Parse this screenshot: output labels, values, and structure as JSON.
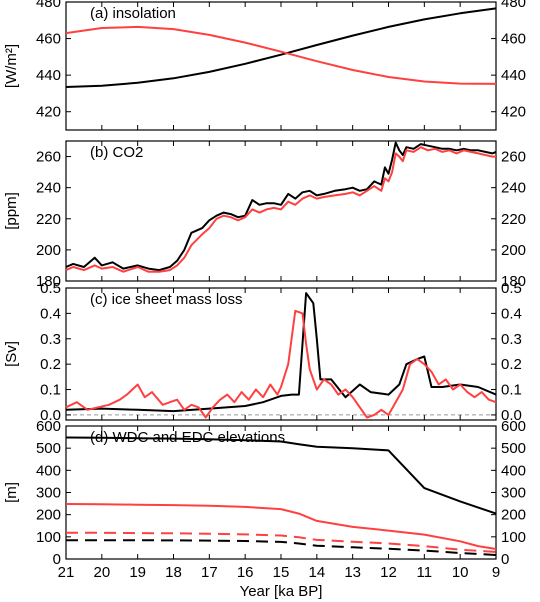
{
  "chart_data": [
    {
      "type": "line",
      "title": "(a) insolation",
      "ylabel": "[W/m²]",
      "xlim": [
        21,
        9
      ],
      "ylim": [
        410,
        480
      ],
      "yticks": [
        420,
        440,
        460,
        480
      ],
      "series": [
        {
          "color": "#000000",
          "x": [
            21,
            20,
            19,
            18,
            17,
            16,
            15,
            14,
            13,
            12,
            11,
            10,
            9
          ],
          "y": [
            433.5,
            434.2,
            435.8,
            438.3,
            441.8,
            446.2,
            451.2,
            456.5,
            461.6,
            466.4,
            470.5,
            473.8,
            476.5
          ]
        },
        {
          "color": "#ff4040",
          "x": [
            21,
            20,
            19,
            18,
            17,
            16,
            15,
            14,
            13,
            12,
            11,
            10,
            9
          ],
          "y": [
            463,
            465.8,
            466.4,
            465.2,
            462,
            457.8,
            452.8,
            447.6,
            442.8,
            439,
            436.5,
            435.4,
            435.2
          ]
        }
      ]
    },
    {
      "type": "line",
      "title": "(b) CO2",
      "ylabel": "[ppm]",
      "xlim": [
        21,
        9
      ],
      "ylim": [
        180,
        270
      ],
      "yticks": [
        180,
        200,
        220,
        240,
        260
      ],
      "series": [
        {
          "color": "#000000",
          "x": [
            21,
            20.8,
            20.5,
            20.2,
            20,
            19.7,
            19.4,
            19,
            18.7,
            18.4,
            18.1,
            17.9,
            17.7,
            17.5,
            17.2,
            17,
            16.8,
            16.6,
            16.4,
            16.2,
            16,
            15.8,
            15.6,
            15.4,
            15.2,
            15,
            14.8,
            14.6,
            14.4,
            14.2,
            14,
            13.8,
            13.5,
            13.2,
            13,
            12.8,
            12.6,
            12.4,
            12.2,
            12.1,
            12,
            11.9,
            11.8,
            11.7,
            11.6,
            11.5,
            11.3,
            11.1,
            10.9,
            10.7,
            10.5,
            10.3,
            10.1,
            9.9,
            9.7,
            9.5,
            9.3,
            9.1,
            9
          ],
          "y": [
            189,
            191,
            189,
            195,
            190,
            192,
            188,
            190,
            188,
            187,
            189,
            193,
            200,
            211,
            214,
            219,
            222,
            224,
            223,
            221,
            222,
            232,
            229,
            230,
            230,
            229,
            236,
            233,
            237,
            238,
            235,
            236,
            238,
            239,
            240,
            238,
            239,
            244,
            242,
            253,
            249,
            258,
            269,
            264,
            261,
            266,
            265,
            268,
            267,
            266,
            265,
            265,
            264,
            265,
            264,
            264,
            263,
            262,
            263
          ]
        },
        {
          "color": "#ff4040",
          "x": [
            21,
            20.8,
            20.5,
            20.2,
            20,
            19.7,
            19.4,
            19,
            18.7,
            18.4,
            18.1,
            17.9,
            17.7,
            17.5,
            17.2,
            17,
            16.8,
            16.6,
            16.4,
            16.2,
            16,
            15.8,
            15.6,
            15.4,
            15.2,
            15,
            14.8,
            14.6,
            14.4,
            14.2,
            14,
            13.8,
            13.5,
            13.2,
            13,
            12.8,
            12.6,
            12.4,
            12.2,
            12.1,
            12,
            11.9,
            11.8,
            11.7,
            11.6,
            11.5,
            11.3,
            11.1,
            10.9,
            10.7,
            10.5,
            10.3,
            10.1,
            9.9,
            9.7,
            9.5,
            9.3,
            9.1,
            9
          ],
          "y": [
            187,
            189,
            187,
            190,
            188,
            189,
            186,
            189,
            186,
            186,
            187,
            190,
            195,
            203,
            210,
            214,
            220,
            222,
            221,
            219,
            221,
            226,
            224,
            226,
            227,
            226,
            231,
            229,
            233,
            235,
            233,
            234,
            235,
            236,
            237,
            235,
            238,
            241,
            238,
            246,
            244,
            250,
            262,
            260,
            257,
            264,
            263,
            266,
            264,
            265,
            263,
            264,
            262,
            264,
            263,
            262,
            261,
            260,
            260
          ]
        }
      ]
    },
    {
      "type": "line",
      "title": "(c) ice sheet mass loss",
      "ylabel": "[Sv]",
      "xlim": [
        21,
        9
      ],
      "ylim": [
        -0.02,
        0.5
      ],
      "yticks": [
        0.0,
        0.1,
        0.2,
        0.3,
        0.4,
        0.5
      ],
      "ytick_labels": [
        "0.0",
        "0.1",
        "0.2",
        "0.3",
        "0.4",
        "0.5"
      ],
      "zero_line": true,
      "series": [
        {
          "color": "#000000",
          "x": [
            21,
            20,
            19,
            18,
            17,
            16,
            15.5,
            15,
            14.7,
            14.5,
            14.3,
            14.1,
            14,
            13.9,
            13.6,
            13.2,
            12.8,
            12.5,
            12,
            11.7,
            11.5,
            11.2,
            11,
            10.8,
            10.5,
            10,
            9.5,
            9
          ],
          "y": [
            0.02,
            0.025,
            0.02,
            0.015,
            0.025,
            0.035,
            0.05,
            0.075,
            0.08,
            0.08,
            0.48,
            0.44,
            0.3,
            0.14,
            0.14,
            0.07,
            0.12,
            0.09,
            0.08,
            0.12,
            0.2,
            0.22,
            0.23,
            0.11,
            0.11,
            0.12,
            0.11,
            0.08
          ]
        },
        {
          "color": "#ff4040",
          "x": [
            21,
            20.7,
            20.4,
            20.1,
            19.8,
            19.5,
            19.3,
            19,
            18.8,
            18.6,
            18.3,
            18.1,
            17.9,
            17.7,
            17.5,
            17.3,
            17.1,
            16.9,
            16.7,
            16.5,
            16.3,
            16.1,
            15.9,
            15.7,
            15.5,
            15.3,
            15.1,
            15,
            14.8,
            14.6,
            14.4,
            14.3,
            14.2,
            14,
            13.8,
            13.6,
            13.4,
            13.2,
            13,
            12.8,
            12.6,
            12.4,
            12.2,
            12,
            11.8,
            11.6,
            11.4,
            11.2,
            11,
            10.8,
            10.6,
            10.4,
            10.2,
            10,
            9.8,
            9.6,
            9.4,
            9.2,
            9
          ],
          "y": [
            0.03,
            0.05,
            0.02,
            0.03,
            0.04,
            0.06,
            0.08,
            0.12,
            0.07,
            0.09,
            0.04,
            0.05,
            0.06,
            0.02,
            0.04,
            0.03,
            -0.01,
            0.03,
            0.06,
            0.08,
            0.05,
            0.09,
            0.06,
            0.1,
            0.07,
            0.12,
            0.08,
            0.11,
            0.2,
            0.41,
            0.4,
            0.28,
            0.18,
            0.1,
            0.14,
            0.12,
            0.08,
            0.1,
            0.07,
            0.03,
            -0.01,
            0.0,
            0.02,
            0.0,
            0.05,
            0.1,
            0.2,
            0.22,
            0.2,
            0.17,
            0.12,
            0.14,
            0.1,
            0.12,
            0.09,
            0.07,
            0.09,
            0.06,
            0.05
          ]
        }
      ]
    },
    {
      "type": "line",
      "title": "(d) WDC and EDC elevations",
      "ylabel": "[m]",
      "xlabel": "Year [ka BP]",
      "xlim": [
        21,
        9
      ],
      "ylim": [
        0,
        600
      ],
      "yticks": [
        0,
        100,
        200,
        300,
        400,
        500,
        600
      ],
      "xticks": [
        21,
        20,
        19,
        18,
        17,
        16,
        15,
        14,
        13,
        12,
        11,
        10,
        9
      ],
      "series": [
        {
          "color": "#000000",
          "dash": false,
          "x": [
            21,
            20,
            19,
            18,
            17,
            16,
            15,
            14.5,
            14,
            13,
            12,
            11,
            10,
            9
          ],
          "y": [
            548,
            547,
            545,
            543,
            540,
            536,
            530,
            518,
            506,
            500,
            490,
            320,
            260,
            205
          ]
        },
        {
          "color": "#ff4040",
          "dash": false,
          "x": [
            21,
            20,
            19,
            18,
            17,
            16,
            15,
            14.5,
            14,
            13,
            12,
            11,
            10,
            9.5,
            9
          ],
          "y": [
            248,
            247,
            245,
            243,
            240,
            235,
            225,
            205,
            172,
            145,
            128,
            110,
            80,
            58,
            45
          ]
        },
        {
          "color": "#ff4040",
          "dash": true,
          "x": [
            21,
            20,
            19,
            18,
            17,
            16,
            15,
            14.5,
            14,
            13,
            12,
            11,
            10,
            9
          ],
          "y": [
            118,
            118,
            117,
            116,
            114,
            111,
            106,
            98,
            86,
            78,
            70,
            58,
            42,
            32
          ]
        },
        {
          "color": "#000000",
          "dash": true,
          "x": [
            21,
            20,
            19,
            18,
            17,
            16,
            15,
            14.5,
            14,
            13,
            12,
            11,
            10,
            9
          ],
          "y": [
            85,
            85,
            85,
            84,
            83,
            81,
            77,
            70,
            60,
            53,
            46,
            38,
            27,
            18
          ]
        }
      ]
    }
  ]
}
